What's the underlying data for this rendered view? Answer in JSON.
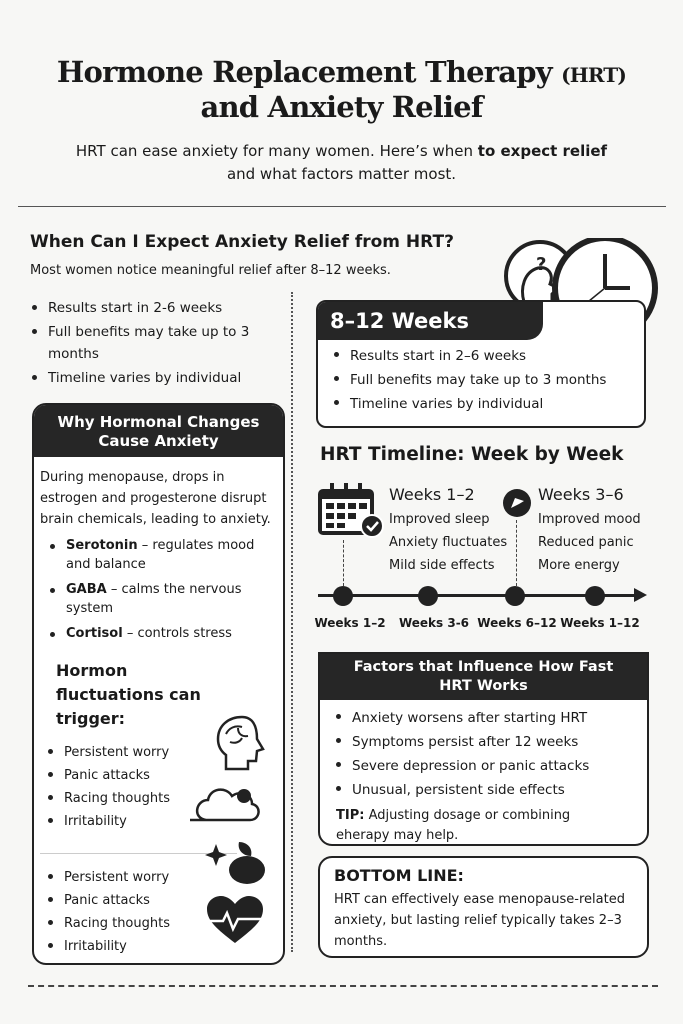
{
  "header": {
    "title_line1": "Hormone Replacement Therapy",
    "title_abbr": "(HRT)",
    "title_line2": "and Anxiety Relief",
    "subtitle_pre": "HRT can ease anxiety for many women. Here’s when ",
    "subtitle_bold": "to expect relief",
    "subtitle_line2": "and what factors matter most."
  },
  "when": {
    "heading": "When Can I Expect Anxiety Relief from HRT?",
    "intro": "Most women notice meaningful relief after 8–12 weeks.",
    "bullets": [
      "Results start in 2-6 weeks",
      "Full benefits may take up to 3 months",
      "Timeline varies by individual"
    ]
  },
  "weeks_box": {
    "title": "8–12 Weeks",
    "bullets": [
      "Results start in 2–6 weeks",
      "Full benefits may take up to 3 months",
      "Timeline varies by individual"
    ]
  },
  "why": {
    "title": "Why Hormonal Changes Cause Anxiety",
    "intro": "During menopause, drops in estrogen and progesterone disrupt brain chemicals, leading to anxiety.",
    "chemicals": [
      {
        "name": "Serotonin",
        "desc": " – regulates mood and balance"
      },
      {
        "name": "GABA",
        "desc": " – calms the nervous system"
      },
      {
        "name": "Cortisol",
        "desc": " – controls stress"
      }
    ],
    "trigger_heading": "Hormon  fluctuations can trigger:",
    "triggers1": [
      "Persistent worry",
      "Panic attacks",
      "Racing thoughts",
      "Irritability"
    ],
    "triggers2": [
      "Persistent worry",
      "Panic attacks",
      "Racing thoughts",
      "Irritability"
    ]
  },
  "timeline": {
    "heading": "HRT Timeline: Week by Week",
    "col1": {
      "title": "Weeks 1–2",
      "items": [
        "Improved sleep",
        "Anxiety fluctuates",
        "Mild side effects"
      ]
    },
    "col2": {
      "title": "Weeks 3–6",
      "items": [
        "Improved mood",
        "Reduced panic",
        "More energy"
      ]
    },
    "labels": [
      "Weeks 1–2",
      "Weeks 3-6",
      "Weeks 6–12",
      "Weeks 1–12"
    ]
  },
  "factors": {
    "title": "Factors that Influence How Fast HRT Works",
    "bullets": [
      "Anxiety worsens after starting HRT",
      "Symptoms persist after 12 weeks",
      "Severe depression or panic attacks",
      "Unusual, persistent side effects"
    ],
    "tip_label": "TIP:",
    "tip_text": "Adjusting dosage or combining eherapy may  help."
  },
  "bottom": {
    "title": "BOTTOM LINE:",
    "text": "HRT can effectively ease menopause-related anxiety, but lasting relief typically takes 2–3 months."
  }
}
